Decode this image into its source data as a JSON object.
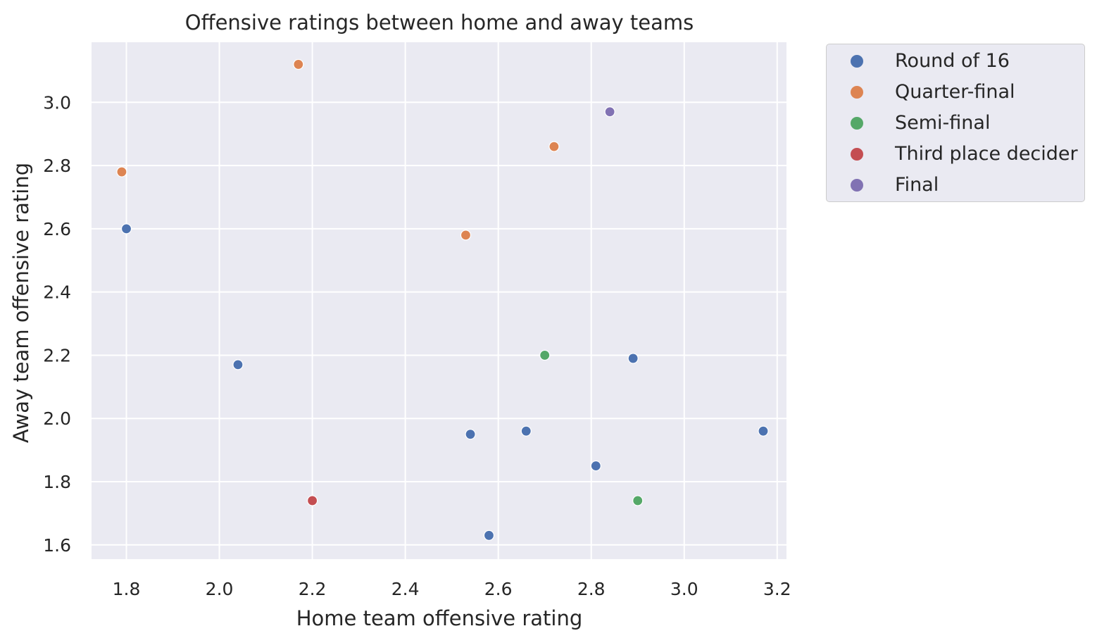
{
  "chart_data": {
    "type": "scatter",
    "title": "Offensive ratings between home and away teams",
    "xlabel": "Home team offensive rating",
    "ylabel": "Away team offensive rating",
    "xlim": [
      1.725,
      3.22
    ],
    "ylim": [
      1.555,
      3.19
    ],
    "x_ticks": [
      1.8,
      2.0,
      2.2,
      2.4,
      2.6,
      2.8,
      3.0,
      3.2
    ],
    "x_tick_labels": [
      "1.8",
      "2.0",
      "2.2",
      "2.4",
      "2.6",
      "2.8",
      "3.0",
      "3.2"
    ],
    "y_ticks": [
      1.6,
      1.8,
      2.0,
      2.2,
      2.4,
      2.6,
      2.8,
      3.0
    ],
    "y_tick_labels": [
      "1.6",
      "1.8",
      "2.0",
      "2.2",
      "2.4",
      "2.6",
      "2.8",
      "3.0"
    ],
    "grid": true,
    "legend_position": "outside-right-top",
    "background": "#eaeaf2",
    "series": [
      {
        "name": "Round of 16",
        "color": "#4c72b0",
        "points": [
          {
            "x": 1.8,
            "y": 2.6
          },
          {
            "x": 2.04,
            "y": 2.17
          },
          {
            "x": 2.54,
            "y": 1.95
          },
          {
            "x": 2.66,
            "y": 1.96
          },
          {
            "x": 2.89,
            "y": 2.19
          },
          {
            "x": 2.81,
            "y": 1.85
          },
          {
            "x": 3.17,
            "y": 1.96
          },
          {
            "x": 2.58,
            "y": 1.63
          }
        ]
      },
      {
        "name": "Quarter-final",
        "color": "#dd8452",
        "points": [
          {
            "x": 2.17,
            "y": 3.12
          },
          {
            "x": 1.79,
            "y": 2.78
          },
          {
            "x": 2.72,
            "y": 2.86
          },
          {
            "x": 2.53,
            "y": 2.58
          }
        ]
      },
      {
        "name": "Semi-final",
        "color": "#55a868",
        "points": [
          {
            "x": 2.7,
            "y": 2.2
          },
          {
            "x": 2.9,
            "y": 1.74
          }
        ]
      },
      {
        "name": "Third place decider",
        "color": "#c44e52",
        "points": [
          {
            "x": 2.2,
            "y": 1.74
          }
        ]
      },
      {
        "name": "Final",
        "color": "#8172b3",
        "points": [
          {
            "x": 2.84,
            "y": 2.97
          }
        ]
      }
    ]
  }
}
